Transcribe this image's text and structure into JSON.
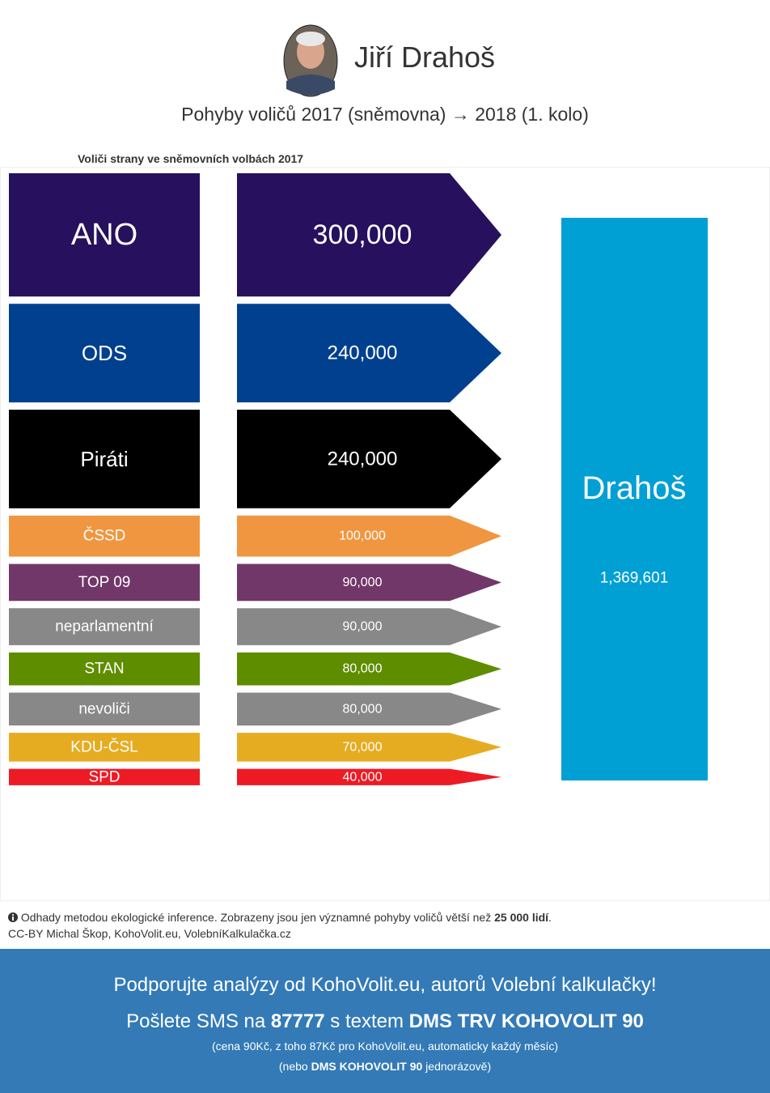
{
  "header": {
    "title": "Jiří Drahoš",
    "subtitle": "Pohyby voličů 2017 (sněmovna) → 2018 (1. kolo)"
  },
  "chart_data": {
    "type": "flow",
    "source_label": "Voliči strany ve sněmovních volbách 2017",
    "categories": [
      "ANO",
      "ODS",
      "Piráti",
      "ČSSD",
      "TOP 09",
      "neparlamentní",
      "STAN",
      "nevoliči",
      "KDU-ČSL",
      "SPD"
    ],
    "values": [
      300000,
      240000,
      240000,
      100000,
      90000,
      90000,
      80000,
      80000,
      70000,
      40000
    ],
    "value_labels": [
      "300,000",
      "240,000",
      "240,000",
      "100,000",
      "90,000",
      "90,000",
      "80,000",
      "80,000",
      "70,000",
      "40,000"
    ],
    "colors": [
      "#27105d",
      "#00408f",
      "#000000",
      "#f09640",
      "#723769",
      "#888888",
      "#5f8d00",
      "#888888",
      "#e6ac21",
      "#ed1b24"
    ],
    "target": {
      "name": "Drahoš",
      "value": 1369601,
      "value_label": "1,369,601",
      "color": "#009fd4"
    }
  },
  "footer": {
    "note_parts": [
      "Odhady metodou ekologické inference. Zobrazeny jsou jen významné pohyby voličů větší než ",
      "25 000 lidí",
      "."
    ],
    "credit": "CC-BY Michal Škop, KohoVolit.eu, VolebníKalkulačka.cz"
  },
  "banner": {
    "line1": "Podporujte analýzy od KohoVolit.eu, autorů Volební kalkulačky!",
    "line2_parts": [
      "Pošlete SMS na ",
      "87777",
      " s textem ",
      "DMS TRV KOHOVOLIT 90"
    ],
    "line3": "(cena 90Kč, z toho 87Kč pro KohoVolit.eu, automaticky každý měsíc)",
    "line4_parts": [
      "(nebo ",
      "DMS KOHOVOLIT 90",
      " jednorázově)"
    ]
  }
}
